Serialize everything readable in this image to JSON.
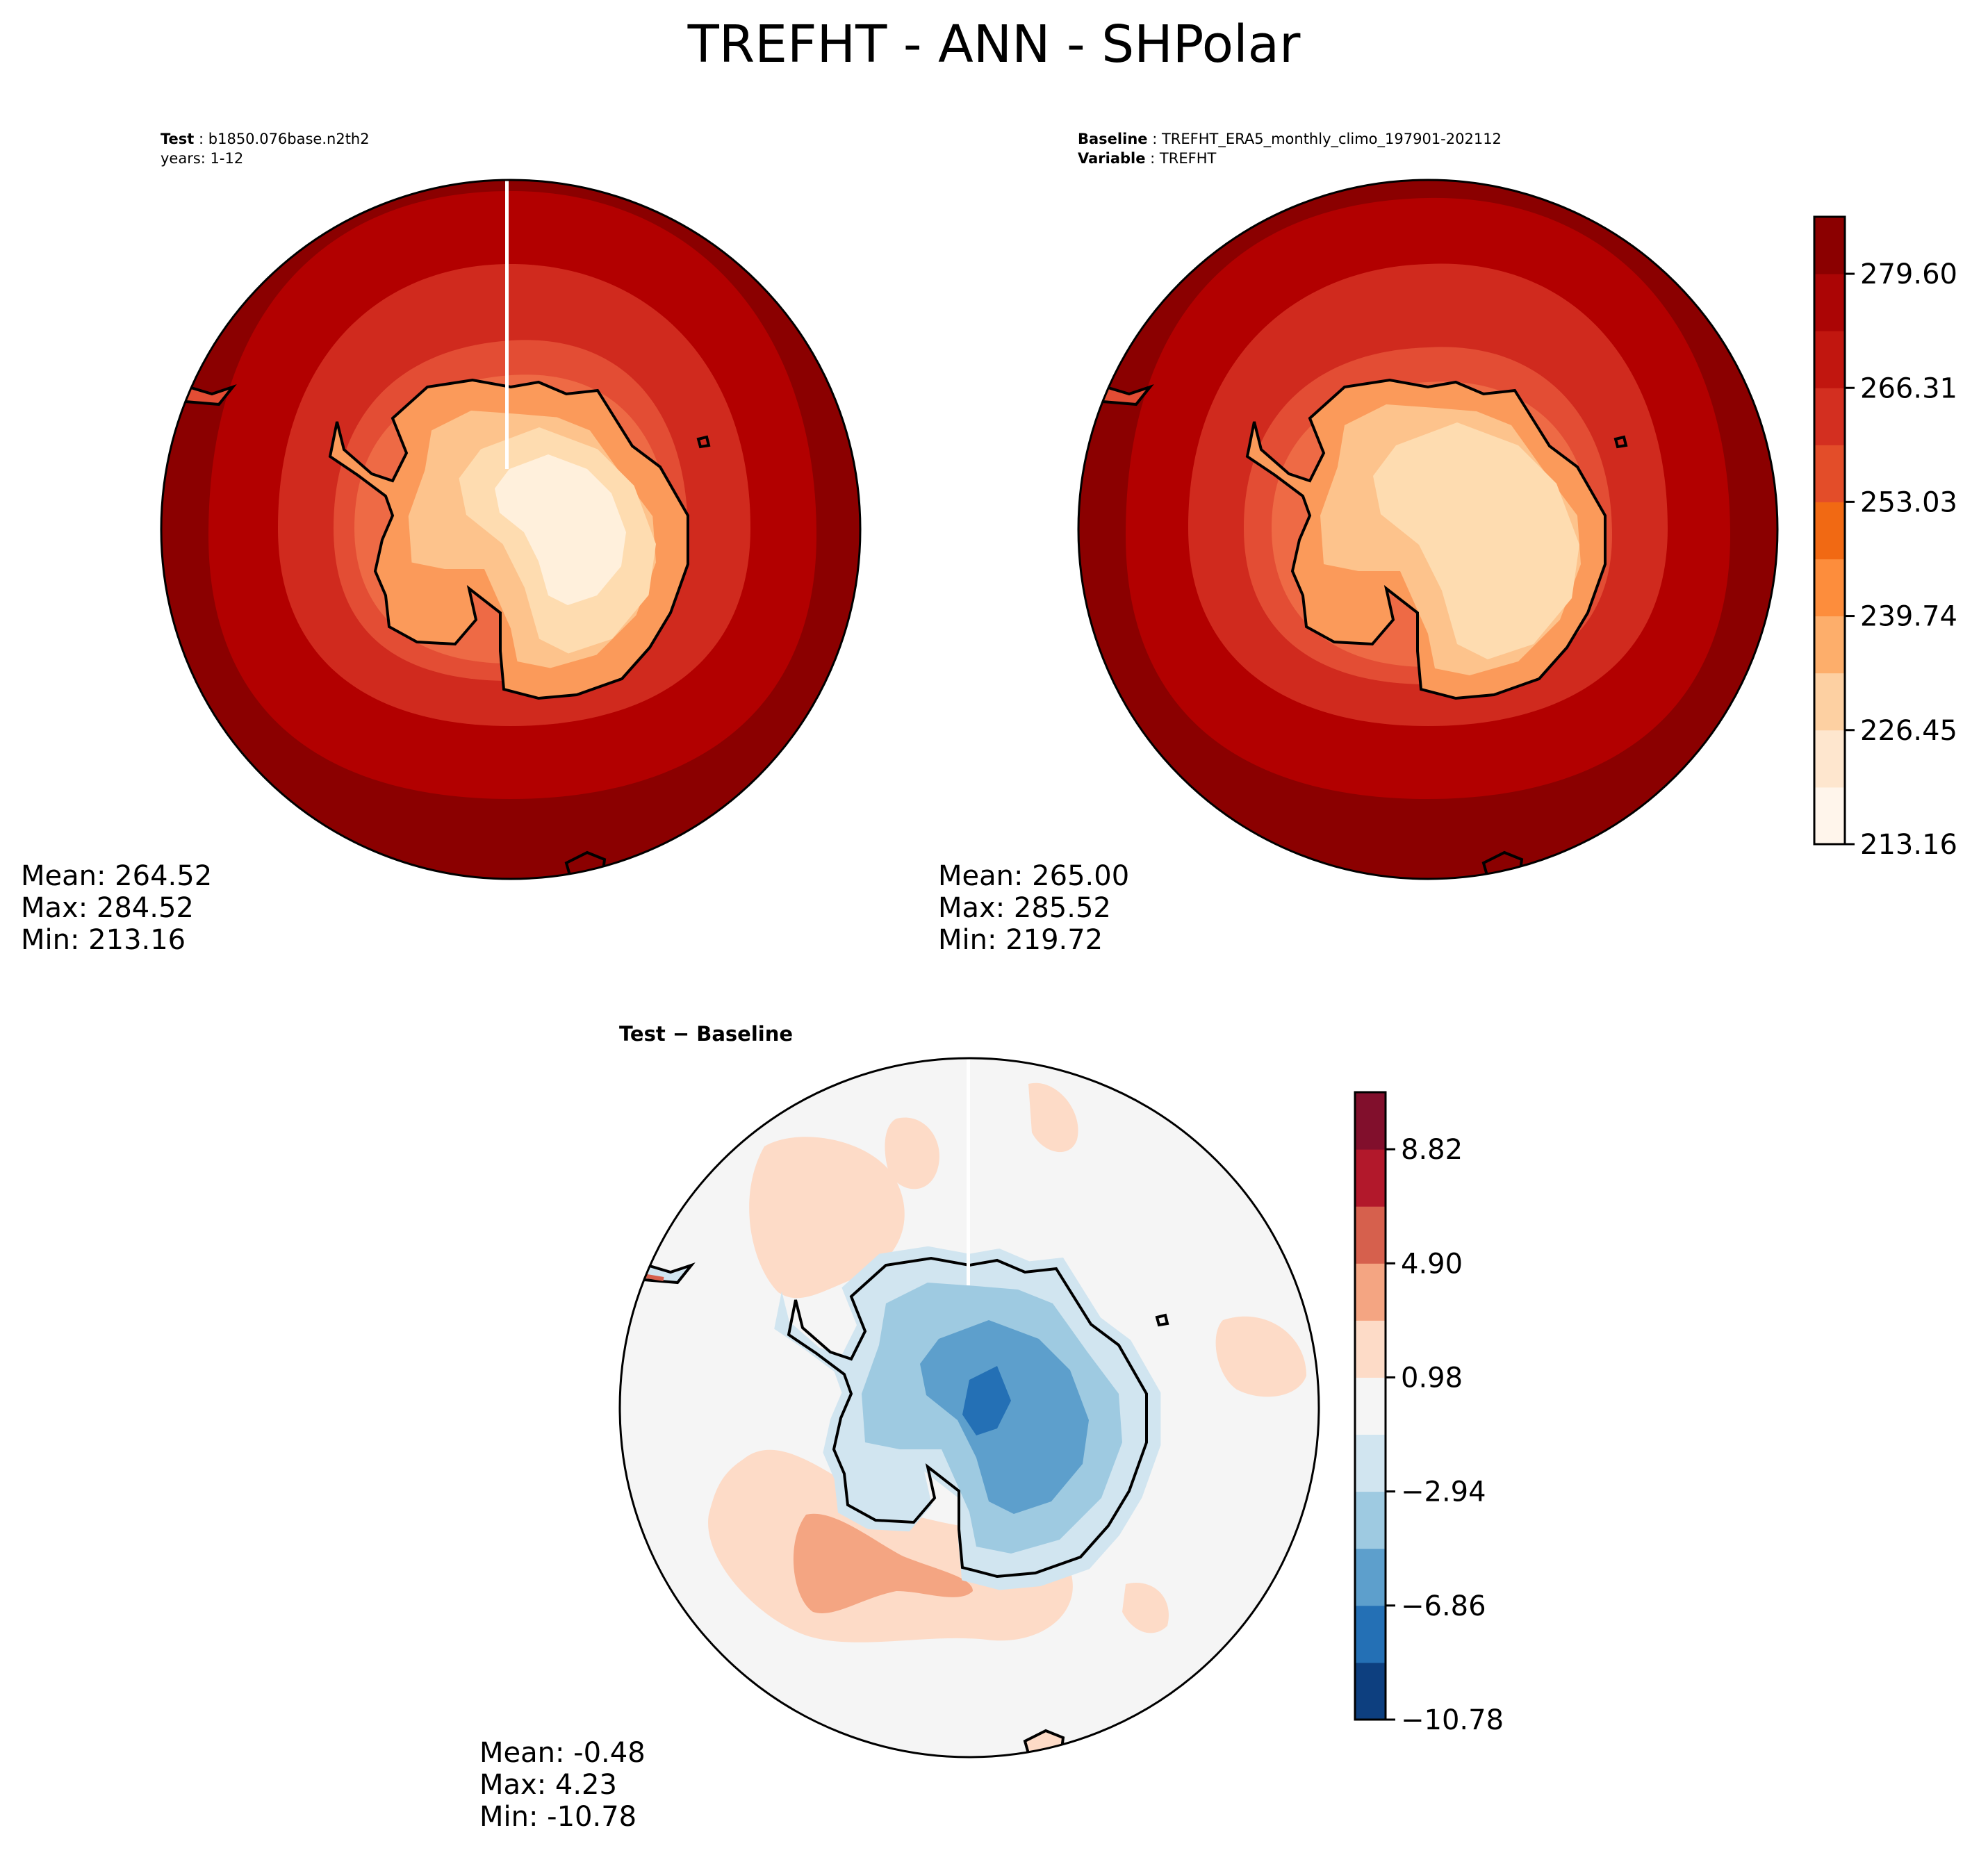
{
  "title": "TREFHT - ANN - SHPolar",
  "test_panel": {
    "label_key": "Test",
    "label_value": "b1850.076base.n2th2",
    "years": "years: 1-12",
    "stats": {
      "mean": "Mean: 264.52",
      "max": "Max: 284.52",
      "min": "Min: 213.16"
    }
  },
  "baseline_panel": {
    "label_key": "Baseline",
    "label_value": "TREFHT_ERA5_monthly_climo_197901-202112",
    "variable_key": "Variable",
    "variable_value": "TREFHT",
    "stats": {
      "mean": "Mean: 265.00",
      "max": "Max: 285.52",
      "min": "Min: 219.72"
    }
  },
  "diff_panel": {
    "title": "Test − Baseline",
    "stats": {
      "mean": "Mean: -0.48",
      "max": "Max:  4.23",
      "min": "Min: -10.78"
    }
  },
  "colorbar_main": {
    "ticks": [
      "213.16",
      "226.45",
      "239.74",
      "253.03",
      "266.31",
      "279.60"
    ],
    "levels": [
      213.16,
      219.8,
      226.45,
      233.1,
      239.74,
      246.38,
      253.03,
      259.67,
      266.31,
      272.96,
      279.6,
      286.24
    ],
    "colors": [
      "#fff5eb",
      "#fee6ce",
      "#fdd0a2",
      "#fdae6b",
      "#fd8d3c",
      "#f16913",
      "#e34d29",
      "#d32f20",
      "#c1160f",
      "#ab0505",
      "#8b0000"
    ]
  },
  "colorbar_diff": {
    "ticks": [
      "−10.78",
      "−6.86",
      "−2.94",
      "0.98",
      "4.90",
      "8.82"
    ],
    "levels": [
      -10.78,
      -8.82,
      -6.86,
      -4.9,
      -2.94,
      -0.98,
      0.98,
      2.94,
      4.9,
      6.86,
      8.82,
      10.78
    ],
    "colors": [
      "#0d3f7f",
      "#2470b5",
      "#5d9fcc",
      "#9ecae1",
      "#d1e5f0",
      "#f5f5f5",
      "#fddbc7",
      "#f4a582",
      "#d6604d",
      "#b2182b",
      "#810f2c"
    ]
  },
  "map_colors": {
    "ocean_outer": "#8b0000",
    "ocean_mid": "#b20000",
    "ocean_inner": "#d02a1e",
    "ring_a": "#e34d34",
    "ring_b": "#ee6a45",
    "coast_edge": "#fb9a5a",
    "land_a": "#fdc38c",
    "land_b": "#fedcb0",
    "land_c": "#fff0dc",
    "diff_bg": "#f5f5f5",
    "diff_pos": "#fddbc7",
    "diff_pos_strong": "#f4a582",
    "diff_neg_a": "#d1e5f0",
    "diff_neg_b": "#9ecae1",
    "diff_neg_c": "#5d9fcc",
    "diff_neg_d": "#2470b5"
  }
}
